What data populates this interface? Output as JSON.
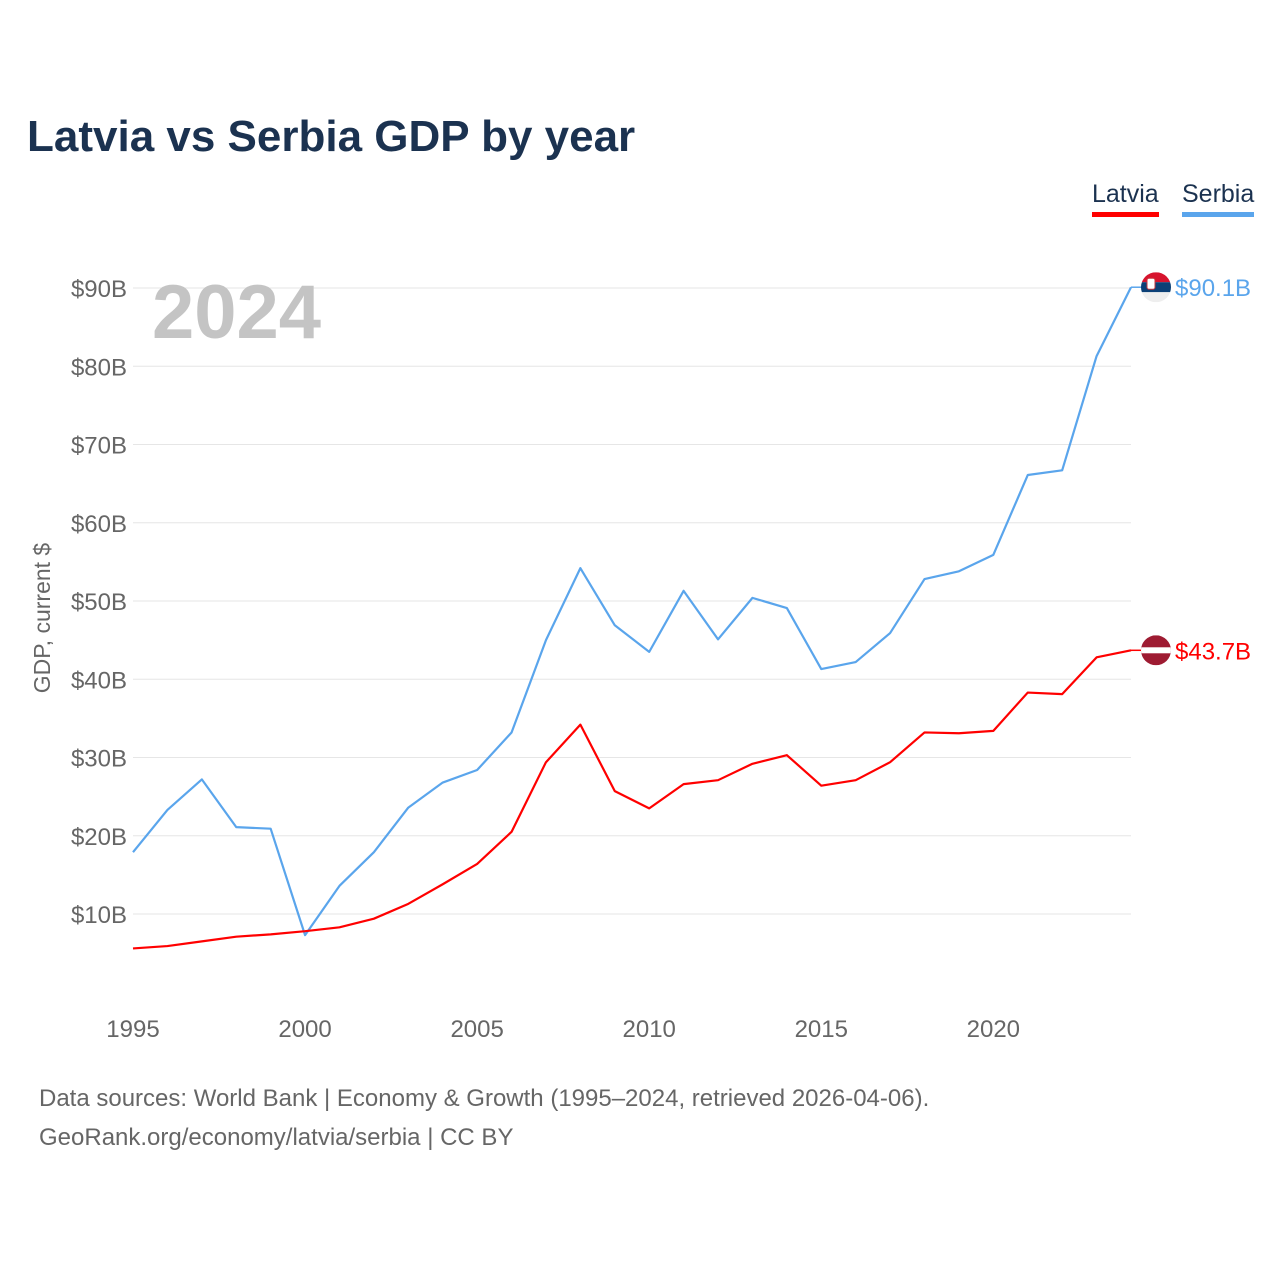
{
  "title": "Latvia vs Serbia GDP by year",
  "legend": {
    "latvia": "Latvia",
    "serbia": "Serbia"
  },
  "year_label": "2024",
  "end_labels": {
    "serbia": "$90.1B",
    "latvia": "$43.7B"
  },
  "flags": {
    "serbia": "serbia-flag-icon",
    "latvia": "latvia-flag-icon"
  },
  "source_line1": "Data sources: World Bank | Economy & Growth (1995–2024, retrieved 2026-04-06).",
  "source_line2": "GeoRank.org/economy/latvia/serbia | CC BY",
  "colors": {
    "latvia": "#ff0000",
    "serbia": "#5aa5ec",
    "title": "#1b3250"
  },
  "chart_data": {
    "type": "line",
    "title": "Latvia vs Serbia GDP by year",
    "xlabel": "",
    "ylabel": "GDP, current $",
    "x": [
      1995,
      1996,
      1997,
      1998,
      1999,
      2000,
      2001,
      2002,
      2003,
      2004,
      2005,
      2006,
      2007,
      2008,
      2009,
      2010,
      2011,
      2012,
      2013,
      2014,
      2015,
      2016,
      2017,
      2018,
      2019,
      2020,
      2021,
      2022,
      2023,
      2024
    ],
    "series": [
      {
        "name": "Latvia",
        "color": "#ff0000",
        "values": [
          5.6,
          5.9,
          6.5,
          7.1,
          7.4,
          7.8,
          8.3,
          9.4,
          11.3,
          13.8,
          16.4,
          20.5,
          29.4,
          34.2,
          25.7,
          23.5,
          26.6,
          27.1,
          29.2,
          30.3,
          26.4,
          27.1,
          29.4,
          33.2,
          33.1,
          33.4,
          38.3,
          38.1,
          42.8,
          43.7
        ]
      },
      {
        "name": "Serbia",
        "color": "#5aa5ec",
        "values": [
          17.9,
          23.3,
          27.2,
          21.1,
          20.9,
          7.3,
          13.6,
          17.9,
          23.6,
          26.8,
          28.4,
          33.2,
          45.0,
          54.2,
          46.9,
          43.5,
          51.3,
          45.1,
          50.4,
          49.1,
          41.3,
          42.2,
          45.9,
          52.8,
          53.8,
          55.9,
          66.1,
          66.7,
          81.3,
          90.1
        ]
      }
    ],
    "yticks": [
      10,
      20,
      30,
      40,
      50,
      60,
      70,
      80,
      90
    ],
    "ytick_labels": [
      "$10B",
      "$20B",
      "$30B",
      "$40B",
      "$50B",
      "$60B",
      "$70B",
      "$80B",
      "$90B"
    ],
    "xticks": [
      1995,
      2000,
      2005,
      2010,
      2015,
      2020
    ],
    "xtick_labels": [
      "1995",
      "2000",
      "2005",
      "2010",
      "2015",
      "2020"
    ],
    "units": "billion USD",
    "ylim": [
      0,
      90
    ],
    "xlim": [
      1995,
      2024
    ],
    "grid": true,
    "legend_position": "top-right"
  }
}
